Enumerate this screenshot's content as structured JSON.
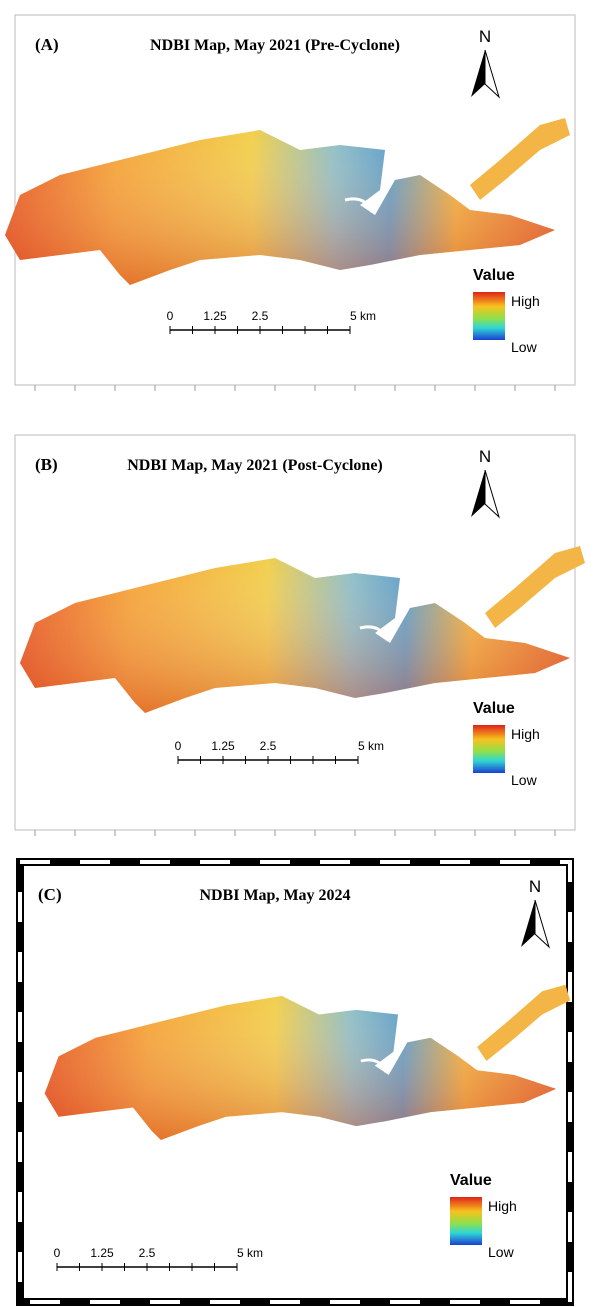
{
  "panels": [
    {
      "label": "(A)",
      "title": "NDBI Map, May 2021 (Pre-Cyclone)",
      "north": "N",
      "legend": {
        "title": "Value",
        "high": "High",
        "low": "Low"
      },
      "scale": [
        "0",
        "1.25",
        "2.5",
        "5 km"
      ]
    },
    {
      "label": "(B)",
      "title": "NDBI Map, May 2021 (Post-Cyclone)",
      "north": "N",
      "legend": {
        "title": "Value",
        "high": "High",
        "low": "Low"
      },
      "scale": [
        "0",
        "1.25",
        "2.5",
        "5 km"
      ]
    },
    {
      "label": "(C)",
      "title": "NDBI Map, May 2024",
      "north": "N",
      "legend": {
        "title": "Value",
        "high": "High",
        "low": "Low"
      },
      "scale": [
        "0",
        "1.25",
        "2.5",
        "5 km"
      ]
    }
  ]
}
